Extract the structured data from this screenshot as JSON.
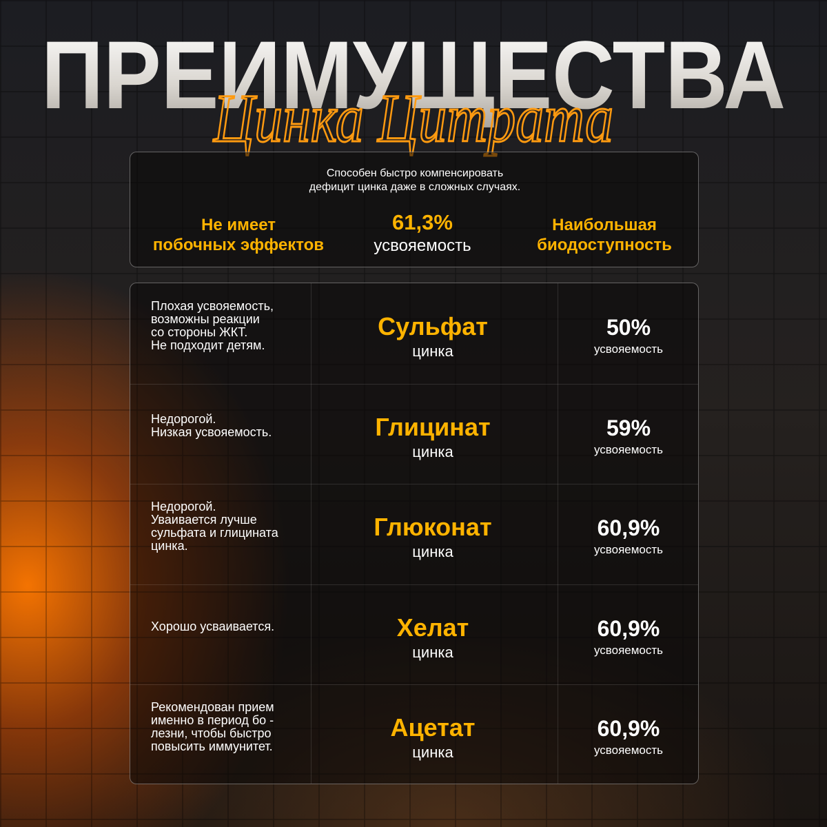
{
  "header": {
    "title": "ПРЕИМУЩЕСТВА",
    "subtitle": "Цинка Цитрата"
  },
  "summary": {
    "description": [
      "Способен быстро компенсировать",
      "дефицит цинка даже в сложных случаях."
    ],
    "features": [
      {
        "lines": [
          "Не имеет",
          "побочных эффектов"
        ]
      },
      {
        "value": "61,3%",
        "label": "усвояемость"
      },
      {
        "lines": [
          "Наибольшая",
          "биодоступность"
        ]
      }
    ]
  },
  "table": {
    "rows": [
      {
        "description": [
          "Плохая усвояемость,",
          "возможны реакции",
          "со стороны ЖКТ.",
          "Не подходит детям."
        ],
        "name": "Сульфат",
        "sub": "цинка",
        "value": "50%",
        "unit": "усвояемость"
      },
      {
        "description": [
          "Недорогой.",
          "Низкая усвояемость."
        ],
        "name": "Глицинат",
        "sub": "цинка",
        "value": "59%",
        "unit": "усвояемость"
      },
      {
        "description": [
          "Недорогой.",
          "Уваивается лучше",
          "сульфата и глицината",
          "цинка."
        ],
        "name": "Глюконат",
        "sub": "цинка",
        "value": "60,9%",
        "unit": "усвояемость"
      },
      {
        "description": [
          "Хорошо усваивается."
        ],
        "name": "Хелат",
        "sub": "цинка",
        "value": "60,9%",
        "unit": "усвояемость"
      },
      {
        "description": [
          "Рекомендован прием",
          "именно в период бо -",
          "лезни, чтобы быстро",
          "повысить иммунитет."
        ],
        "name": "Ацетат",
        "sub": "цинка",
        "value": "60,9%",
        "unit": "усвояемость"
      }
    ]
  }
}
